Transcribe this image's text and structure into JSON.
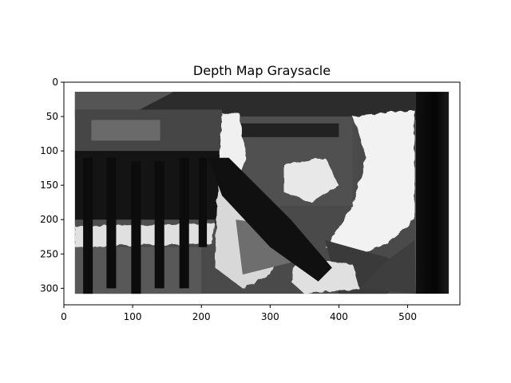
{
  "chart_data": {
    "type": "heatmap",
    "colormap": "gray",
    "title": "Depth Map Graysacle",
    "xlabel": "",
    "ylabel": "",
    "image_width": 576,
    "image_height": 324,
    "xlim": [
      0,
      576
    ],
    "ylim": [
      324,
      0
    ],
    "x_ticks": [
      0,
      100,
      200,
      300,
      400,
      500
    ],
    "y_ticks": [
      0,
      50,
      100,
      150,
      200,
      250,
      300
    ],
    "x_tick_labels": [
      "0",
      "100",
      "200",
      "300",
      "400",
      "500"
    ],
    "y_tick_labels": [
      "0",
      "50",
      "100",
      "150",
      "200",
      "250",
      "300"
    ],
    "valid_region": {
      "x": [
        16,
        560
      ],
      "y": [
        14,
        308
      ]
    },
    "near_black_band_x": [
      512,
      560
    ]
  },
  "colors": {
    "background": "#ffffff",
    "axes": "#000000",
    "near": "#ffffff",
    "far": "#000000"
  }
}
